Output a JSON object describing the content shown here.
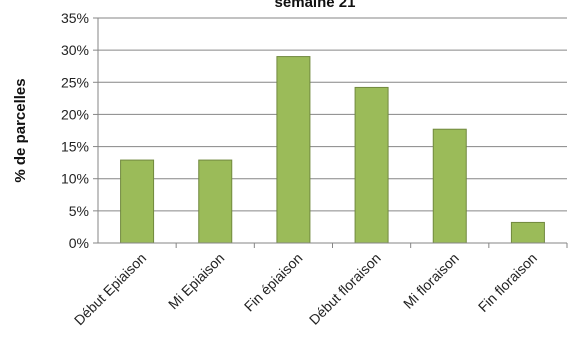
{
  "chart_data": {
    "type": "bar",
    "title": "semaine 21",
    "xlabel": "",
    "ylabel": "% de parcelles",
    "categories": [
      "Début Epiaison",
      "Mi Epiaison",
      "Fin épiaison",
      "Début floraison",
      "Mi floraison",
      "Fin floraison"
    ],
    "values": [
      12.9,
      12.9,
      29.0,
      24.2,
      17.7,
      3.2
    ],
    "ylim": [
      0,
      35
    ],
    "yticks": [
      0,
      5,
      10,
      15,
      20,
      25,
      30,
      35
    ],
    "ytick_labels": [
      "0%",
      "5%",
      "10%",
      "15%",
      "20%",
      "25%",
      "30%",
      "35%"
    ],
    "grid": true,
    "legend": "none",
    "colors": {
      "bar_fill": "#9bbb59",
      "bar_stroke": "#71893f",
      "grid": "#868686",
      "axis": "#868686"
    }
  }
}
